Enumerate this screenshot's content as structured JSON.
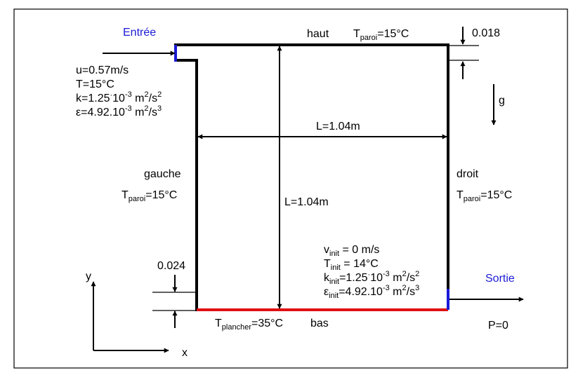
{
  "labels": {
    "inlet": "Entrée",
    "outlet": "Sortie",
    "top": "haut",
    "bottom": "bas",
    "left": "gauche",
    "right": "droit",
    "gravity": "g",
    "x_axis": "x",
    "y_axis": "y",
    "width": "L=1.04m",
    "height": "L=1.04m",
    "top_gap": "0.018",
    "bottom_gap": "0.024",
    "outlet_pressure": "P=0"
  },
  "wall_temperature": {
    "symbol": "T",
    "subscript": "paroi",
    "value": "=15°C"
  },
  "floor_temperature": {
    "symbol": "T",
    "subscript": "plancher",
    "value": "=35°C"
  },
  "inlet_conditions": {
    "velocity": "u=0.57m/s",
    "temperature": "T=15°C",
    "k_lead": "k=1.25",
    "eps_lead": "ε=4.92.10",
    "exp_k": "-3",
    "exp_eps": "-3",
    "units_base": " m",
    "units_mid": "/s",
    "power_2": "2",
    "power_3": "3",
    "ten": "10"
  },
  "initial_conditions": {
    "v_symbol": "v",
    "t_symbol": "T",
    "k_symbol": "k",
    "eps_symbol": "ε",
    "init": "init",
    "v_value": " = 0 m/s",
    "t_value": " = 14°C",
    "k_value": "=1.25",
    "eps_value": "=4.92.10",
    "ten": "10",
    "exp_k": "-3",
    "exp_eps": "-3",
    "units_base": " m",
    "units_mid": "/s",
    "power_2": "2",
    "power_3": "3"
  },
  "colors": {
    "walls": "#000000",
    "inlet_outlet": "#1a1ad6",
    "heated_floor": "#e01010"
  }
}
